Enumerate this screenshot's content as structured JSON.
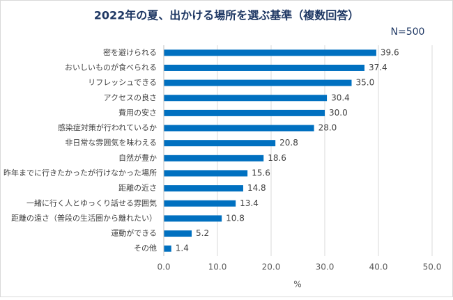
{
  "chart_data": {
    "type": "hbar",
    "title": "2022年の夏、出かける場所を選ぶ基準（複数回答）",
    "annotation": "N=500",
    "xlabel": "%",
    "categories": [
      "密を避けられる",
      "おいしいものが食べられる",
      "リフレッシュできる",
      "アクセスの良さ",
      "費用の安さ",
      "感染症対策が行われているか",
      "非日常な雰囲気を味わえる",
      "自然が豊か",
      "昨年までに行きたかったが行けなかった場所",
      "距離の近さ",
      "一緒に行く人とゆっくり話せる雰囲気",
      "距離の遠さ（普段の生活圏から離れたい）",
      "運動ができる",
      "その他"
    ],
    "values": [
      39.6,
      37.4,
      35.0,
      30.4,
      30.0,
      28.0,
      20.8,
      18.6,
      15.6,
      14.8,
      13.4,
      10.8,
      5.2,
      1.4
    ],
    "value_labels": [
      "39.6",
      "37.4",
      "35.0",
      "30.4",
      "30.0",
      "28.0",
      "20.8",
      "18.6",
      "15.6",
      "14.8",
      "13.4",
      "10.8",
      "5.2",
      "1.4"
    ],
    "color": "#0070c0",
    "xlim": [
      0,
      50
    ],
    "xticks": [
      {
        "value": 0,
        "label": "0.0"
      },
      {
        "value": 10,
        "label": "10.0"
      },
      {
        "value": 20,
        "label": "20.0"
      },
      {
        "value": 30,
        "label": "30.0"
      },
      {
        "value": 40,
        "label": "40.0"
      },
      {
        "value": 50,
        "label": "50.0"
      }
    ],
    "grid": true
  }
}
